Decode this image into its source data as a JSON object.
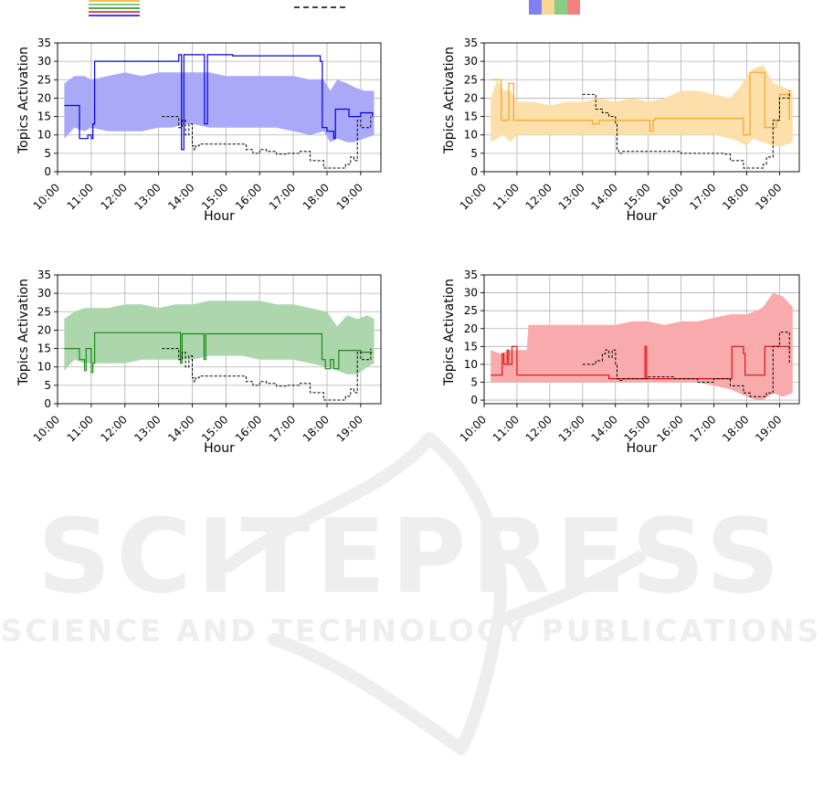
{
  "colors": {
    "blue": "#0000dd",
    "blue_fill": "#a9a9f8",
    "orange": "#f5a623",
    "orange_fill": "#fcdfaa",
    "green": "#1a8a1a",
    "green_fill": "#acd6ac",
    "red": "#e01010",
    "red_fill": "#f9aaaa",
    "reference": "#000000",
    "grid": "#b0b0b0"
  },
  "legend": {
    "line_colors": [
      "#f5a623",
      "#55bb55",
      "#1a8a1a",
      "#e01010",
      "#0000dd"
    ],
    "dash_color": "#000000",
    "swatch_colors": [
      "#8080f0",
      "#f8d890",
      "#88cc88",
      "#f48080"
    ]
  },
  "watermark": {
    "line1": "SCITEPRESS",
    "line2": "SCIENCE AND TECHNOLOGY PUBLICATIONS"
  },
  "chart_data": [
    {
      "type": "line",
      "panel": "top-left",
      "color": "blue",
      "xlabel": "Hour",
      "ylabel": "Topics Activation",
      "xlim": [
        10,
        19.6
      ],
      "ylim": [
        0,
        35
      ],
      "xticks": [
        "10:00",
        "11:00",
        "12:00",
        "13:00",
        "14:00",
        "15:00",
        "16:00",
        "17:00",
        "18:00",
        "19:00"
      ],
      "yticks": [
        0,
        5,
        10,
        15,
        20,
        25,
        30,
        35
      ],
      "grid": true,
      "band": {
        "x": [
          10.2,
          10.5,
          10.8,
          11.0,
          11.5,
          12.0,
          12.5,
          13.0,
          13.4,
          13.8,
          14.0,
          14.5,
          15.0,
          15.5,
          16.0,
          16.5,
          17.0,
          17.5,
          17.9,
          18.1,
          18.3,
          18.6,
          18.8,
          19.1,
          19.4
        ],
        "upper": [
          24,
          26,
          26,
          25,
          26,
          27,
          26,
          27,
          27,
          27,
          27,
          27,
          26,
          26,
          26,
          26,
          26,
          25,
          25,
          22,
          25,
          24,
          23,
          22,
          22
        ],
        "lower": [
          9,
          12,
          11,
          12,
          11,
          11,
          11,
          12,
          12,
          13,
          13,
          12,
          12,
          12,
          12,
          12,
          11,
          10,
          11,
          8,
          9,
          8,
          8,
          9,
          10
        ]
      },
      "mean": {
        "x": [
          10.2,
          10.6,
          10.65,
          10.9,
          11.0,
          11.05,
          11.1,
          13.6,
          13.68,
          13.75,
          14.3,
          14.36,
          14.45,
          15.2,
          17.8,
          17.86,
          18.0,
          18.2,
          18.25,
          18.6,
          18.65,
          18.9,
          19.0,
          19.2,
          19.35
        ],
        "y": [
          18,
          18,
          9,
          10,
          9,
          13,
          30,
          31.8,
          6,
          31.8,
          31.8,
          13,
          31.8,
          31.5,
          30,
          12,
          11,
          9,
          17,
          17,
          15,
          15,
          16,
          16,
          15
        ]
      },
      "reference": {
        "x": [
          13.1,
          13.55,
          13.6,
          13.7,
          13.8,
          13.9,
          14.0,
          14.05,
          14.1,
          14.2,
          15.5,
          15.6,
          15.8,
          16.0,
          16.2,
          16.5,
          16.8,
          17.0,
          17.2,
          17.5,
          17.9,
          18.1,
          18.5,
          18.55,
          18.7,
          18.8,
          18.9,
          19.0,
          19.3
        ],
        "y": [
          15,
          15,
          12,
          14,
          10,
          13,
          7,
          6,
          7,
          7.5,
          7.5,
          6,
          5,
          6,
          5.5,
          4.8,
          5,
          5,
          5.5,
          3,
          1,
          1,
          1,
          2,
          4,
          3,
          14,
          12,
          15
        ]
      }
    },
    {
      "type": "line",
      "panel": "top-right",
      "color": "orange",
      "xlabel": "Hour",
      "ylabel": "Topics Activation",
      "xlim": [
        10,
        19.6
      ],
      "ylim": [
        0,
        35
      ],
      "xticks": [
        "10:00",
        "11:00",
        "12:00",
        "13:00",
        "14:00",
        "15:00",
        "16:00",
        "17:00",
        "18:00",
        "19:00"
      ],
      "yticks": [
        0,
        5,
        10,
        15,
        20,
        25,
        30,
        35
      ],
      "grid": true,
      "band": {
        "x": [
          10.2,
          10.4,
          10.6,
          10.8,
          11.0,
          11.5,
          12.0,
          12.5,
          13.0,
          13.5,
          14.0,
          14.5,
          15.0,
          15.5,
          16.0,
          16.5,
          17.0,
          17.5,
          17.8,
          18.0,
          18.2,
          18.5,
          18.8,
          19.1,
          19.4
        ],
        "upper": [
          20,
          25,
          22,
          22,
          19,
          19,
          18,
          19,
          19,
          20,
          19,
          20,
          19,
          20,
          22,
          22,
          21,
          20,
          23,
          26,
          28,
          29,
          24,
          23,
          22
        ],
        "lower": [
          8,
          9,
          10,
          8,
          10,
          10,
          10,
          10,
          10,
          10,
          10,
          10,
          10,
          10,
          10,
          10,
          10,
          9,
          8,
          7,
          9,
          8,
          7,
          7,
          8
        ],
        "spike_x": 18.2
      },
      "mean": {
        "x": [
          10.2,
          10.3,
          10.5,
          10.52,
          10.7,
          10.75,
          10.85,
          10.9,
          11.0,
          11.05,
          13.0,
          13.2,
          13.3,
          13.5,
          13.6,
          13.8,
          14.0,
          15.0,
          15.05,
          15.15,
          15.2,
          17.5,
          17.8,
          17.9,
          18.05,
          18.1,
          18.5,
          18.55,
          18.9,
          19.0,
          19.3
        ],
        "y": [
          25,
          25,
          25,
          14,
          14,
          24,
          24,
          14,
          14,
          14,
          14,
          14,
          13,
          14,
          14,
          14,
          14,
          14,
          11,
          14,
          14.5,
          14.5,
          14.5,
          10,
          10,
          27,
          27,
          12,
          14,
          21,
          14
        ]
      },
      "reference": {
        "x": [
          13.0,
          13.3,
          13.4,
          13.6,
          13.8,
          14.0,
          14.05,
          14.1,
          14.2,
          15.0,
          15.5,
          15.8,
          16.0,
          16.5,
          17.0,
          17.3,
          17.5,
          17.9,
          18.1,
          18.3,
          18.5,
          18.6,
          18.8,
          19.0,
          19.3
        ],
        "y": [
          21,
          21,
          17,
          16,
          15,
          13,
          6,
          5,
          5.5,
          5.5,
          5.5,
          5.5,
          5,
          5,
          5,
          4.8,
          3,
          1,
          1,
          1,
          2,
          4,
          14,
          20,
          22
        ]
      }
    },
    {
      "type": "line",
      "panel": "bottom-left",
      "color": "green",
      "xlabel": "Hour",
      "ylabel": "Topics Activation",
      "xlim": [
        10,
        19.6
      ],
      "ylim": [
        0,
        35
      ],
      "xticks": [
        "10:00",
        "11:00",
        "12:00",
        "13:00",
        "14:00",
        "15:00",
        "16:00",
        "17:00",
        "18:00",
        "19:00"
      ],
      "yticks": [
        0,
        5,
        10,
        15,
        20,
        25,
        30,
        35
      ],
      "grid": true,
      "band": {
        "x": [
          10.2,
          10.5,
          10.8,
          11.0,
          11.5,
          12.0,
          12.5,
          13.0,
          13.5,
          14.0,
          14.5,
          15.0,
          15.5,
          16.0,
          16.5,
          17.0,
          17.5,
          18.0,
          18.3,
          18.6,
          18.9,
          19.2,
          19.4
        ],
        "upper": [
          23,
          25,
          26,
          26,
          26,
          27,
          27,
          26,
          27,
          27,
          28,
          28,
          28,
          28,
          27,
          27,
          26,
          25,
          21,
          24,
          23,
          24,
          23
        ],
        "lower": [
          9,
          12,
          11,
          11,
          11,
          11,
          12,
          12,
          12,
          12,
          13,
          13,
          13,
          12,
          12,
          12,
          11,
          10,
          9,
          8,
          8,
          10,
          11
        ]
      },
      "mean": {
        "x": [
          10.2,
          10.6,
          10.65,
          10.8,
          10.85,
          11.0,
          11.05,
          11.1,
          13.6,
          13.65,
          13.7,
          14.3,
          14.35,
          14.4,
          17.8,
          17.85,
          17.95,
          18.1,
          18.2,
          18.35,
          18.9,
          19.0,
          19.2,
          19.35
        ],
        "y": [
          15,
          15,
          12,
          9,
          15,
          8.5,
          11,
          19.3,
          19.3,
          11,
          19,
          19,
          12,
          19,
          19,
          12,
          9.5,
          12,
          9.5,
          14.5,
          14.5,
          14,
          14,
          14
        ]
      },
      "reference": {
        "x": [
          13.1,
          13.55,
          13.6,
          13.7,
          13.8,
          13.9,
          14.0,
          14.05,
          14.1,
          14.2,
          15.5,
          15.6,
          15.8,
          16.0,
          16.2,
          16.5,
          16.8,
          17.0,
          17.2,
          17.5,
          17.9,
          18.1,
          18.5,
          18.55,
          18.7,
          18.8,
          18.9,
          19.0,
          19.3
        ],
        "y": [
          15,
          15,
          12,
          14,
          10,
          13,
          7,
          6,
          7,
          7.5,
          7.5,
          6,
          5,
          6,
          5.5,
          4.8,
          5,
          5,
          5.5,
          3,
          1,
          1,
          1,
          2,
          4,
          3,
          14,
          12,
          15
        ]
      }
    },
    {
      "type": "line",
      "panel": "bottom-right",
      "color": "red",
      "xlabel": "Hour",
      "ylabel": "Topics Activation",
      "xlim": [
        10,
        19.6
      ],
      "ylim": [
        -1,
        35
      ],
      "xticks": [
        "10:00",
        "11:00",
        "12:00",
        "13:00",
        "14:00",
        "15:00",
        "16:00",
        "17:00",
        "18:00",
        "19:00"
      ],
      "yticks": [
        0,
        5,
        10,
        15,
        20,
        25,
        30,
        35
      ],
      "grid": true,
      "band": {
        "x": [
          10.2,
          10.5,
          10.8,
          11.0,
          11.3,
          11.35,
          12.0,
          12.5,
          13.0,
          13.5,
          14.0,
          14.5,
          15.0,
          15.5,
          16.0,
          16.5,
          17.0,
          17.5,
          18.0,
          18.3,
          18.5,
          18.8,
          19.1,
          19.4
        ],
        "upper": [
          14,
          13,
          14,
          14,
          14,
          21,
          21,
          21,
          21,
          21,
          21,
          22,
          22,
          21,
          22,
          22,
          23,
          24,
          24,
          25,
          26,
          30,
          29,
          26
        ],
        "lower": [
          5,
          5,
          5,
          5,
          5,
          5,
          5,
          5,
          5,
          5,
          5,
          5,
          5,
          5,
          5,
          5,
          4,
          3,
          1,
          0,
          0,
          2,
          1,
          2
        ]
      },
      "mean": {
        "x": [
          10.2,
          10.5,
          10.55,
          10.6,
          10.7,
          10.75,
          10.85,
          10.95,
          11.0,
          11.1,
          12.0,
          13.0,
          13.75,
          13.8,
          14.0,
          14.85,
          14.9,
          14.95,
          15.0,
          16.0,
          17.5,
          17.55,
          17.7,
          17.9,
          17.95,
          18.5,
          18.55,
          18.9,
          19.3
        ],
        "y": [
          7,
          7,
          13,
          10,
          14,
          10,
          15,
          15,
          7,
          7,
          7,
          7,
          7,
          6,
          6,
          6,
          15,
          6,
          6,
          6,
          6,
          15,
          15,
          13,
          7,
          7,
          15,
          15,
          14
        ]
      },
      "reference": {
        "x": [
          13.0,
          13.3,
          13.4,
          13.6,
          13.7,
          13.8,
          13.9,
          14.0,
          14.05,
          14.1,
          14.2,
          15.0,
          15.5,
          15.8,
          16.0,
          16.5,
          17.0,
          17.3,
          17.5,
          17.9,
          18.1,
          18.3,
          18.5,
          18.6,
          18.8,
          19.0,
          19.3
        ],
        "y": [
          10,
          10,
          11,
          13,
          14,
          12,
          14,
          10,
          6,
          5.5,
          6,
          6.5,
          6.5,
          6,
          6,
          5,
          6,
          6,
          4,
          2,
          1,
          1,
          1,
          2,
          15,
          19,
          10
        ]
      }
    }
  ]
}
